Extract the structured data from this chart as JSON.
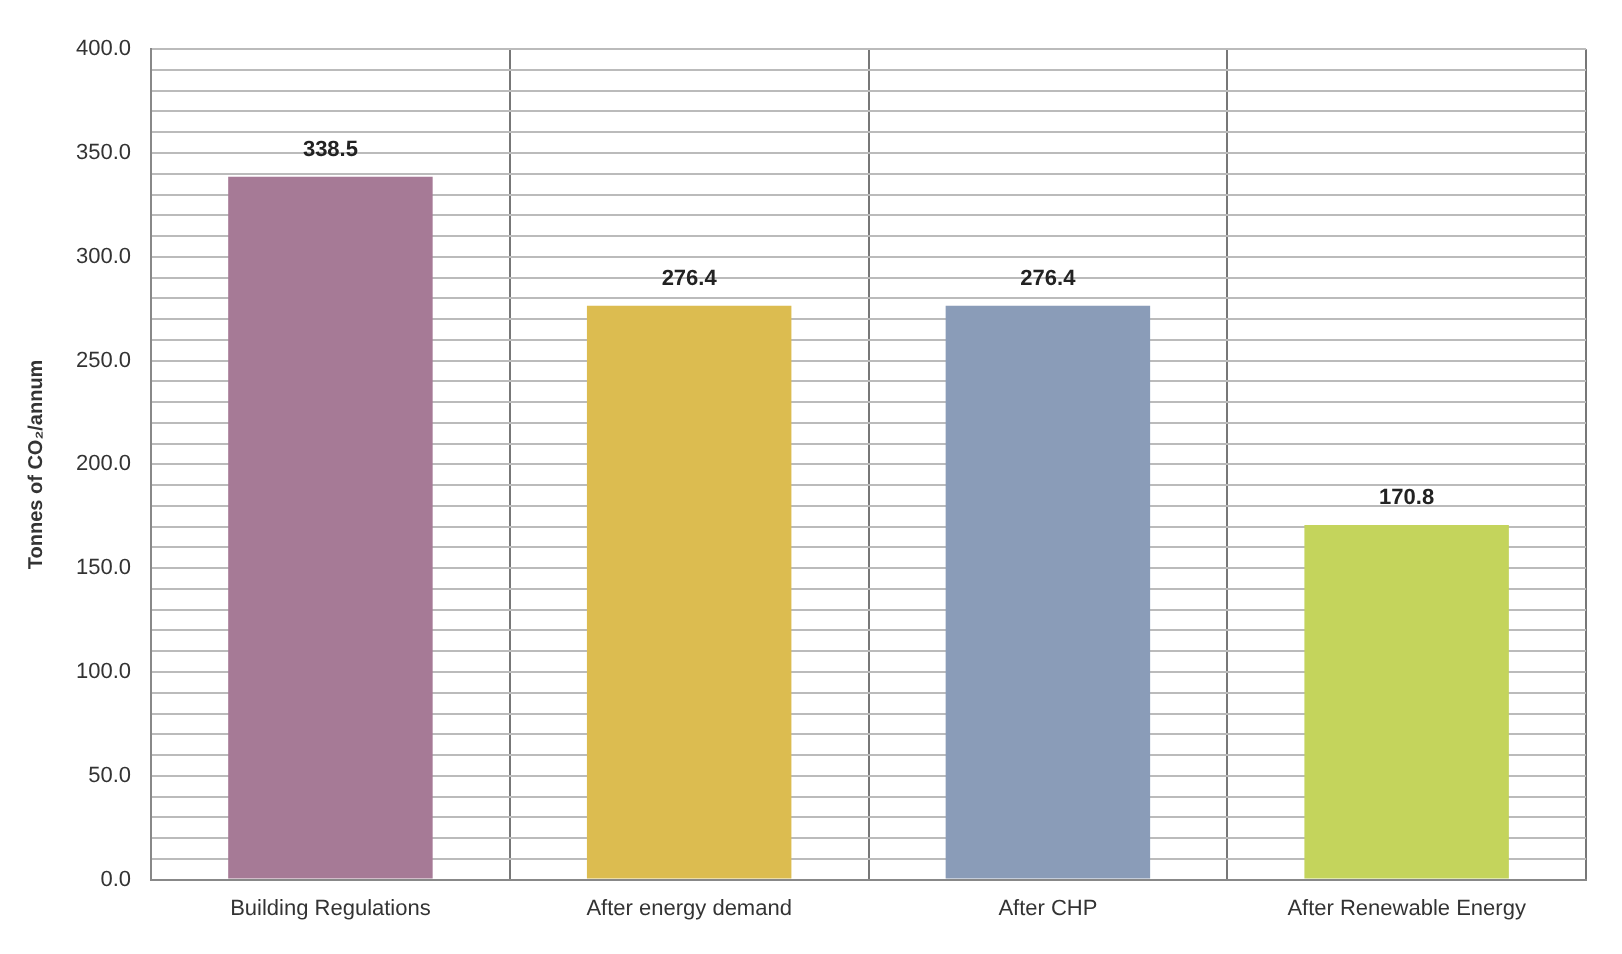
{
  "chart_data": {
    "type": "bar",
    "ylabel": "Tonnes of CO₂/annum",
    "categories": [
      "Building Regulations",
      "After energy demand",
      "After CHP",
      "After Renewable Energy"
    ],
    "values": [
      338.5,
      276.4,
      276.4,
      170.8
    ],
    "colors": [
      "#a67a96",
      "#dcbc50",
      "#8a9cb8",
      "#c4d45c"
    ],
    "ylim": [
      0,
      400
    ],
    "yticks": [
      {
        "value": 0,
        "label": "0.0"
      },
      {
        "value": 10,
        "label": null
      },
      {
        "value": 20,
        "label": null
      },
      {
        "value": 30,
        "label": null
      },
      {
        "value": 40,
        "label": null
      },
      {
        "value": 50,
        "label": "50.0"
      },
      {
        "value": 60,
        "label": null
      },
      {
        "value": 70,
        "label": null
      },
      {
        "value": 80,
        "label": null
      },
      {
        "value": 90,
        "label": null
      },
      {
        "value": 100,
        "label": "100.0"
      },
      {
        "value": 110,
        "label": null
      },
      {
        "value": 120,
        "label": null
      },
      {
        "value": 130,
        "label": null
      },
      {
        "value": 140,
        "label": null
      },
      {
        "value": 150,
        "label": "150.0"
      },
      {
        "value": 160,
        "label": null
      },
      {
        "value": 170,
        "label": null
      },
      {
        "value": 180,
        "label": null
      },
      {
        "value": 190,
        "label": null
      },
      {
        "value": 200,
        "label": "200.0"
      },
      {
        "value": 210,
        "label": null
      },
      {
        "value": 220,
        "label": null
      },
      {
        "value": 230,
        "label": null
      },
      {
        "value": 240,
        "label": null
      },
      {
        "value": 250,
        "label": "250.0"
      },
      {
        "value": 260,
        "label": null
      },
      {
        "value": 270,
        "label": null
      },
      {
        "value": 280,
        "label": null
      },
      {
        "value": 290,
        "label": null
      },
      {
        "value": 300,
        "label": "300.0"
      },
      {
        "value": 310,
        "label": null
      },
      {
        "value": 320,
        "label": null
      },
      {
        "value": 330,
        "label": null
      },
      {
        "value": 340,
        "label": null
      },
      {
        "value": 350,
        "label": "350.0"
      },
      {
        "value": 360,
        "label": null
      },
      {
        "value": 370,
        "label": null
      },
      {
        "value": 380,
        "label": null
      },
      {
        "value": 390,
        "label": null
      },
      {
        "value": 400,
        "label": "400.0"
      }
    ],
    "grid": true,
    "legend": false,
    "data_labels": true
  }
}
